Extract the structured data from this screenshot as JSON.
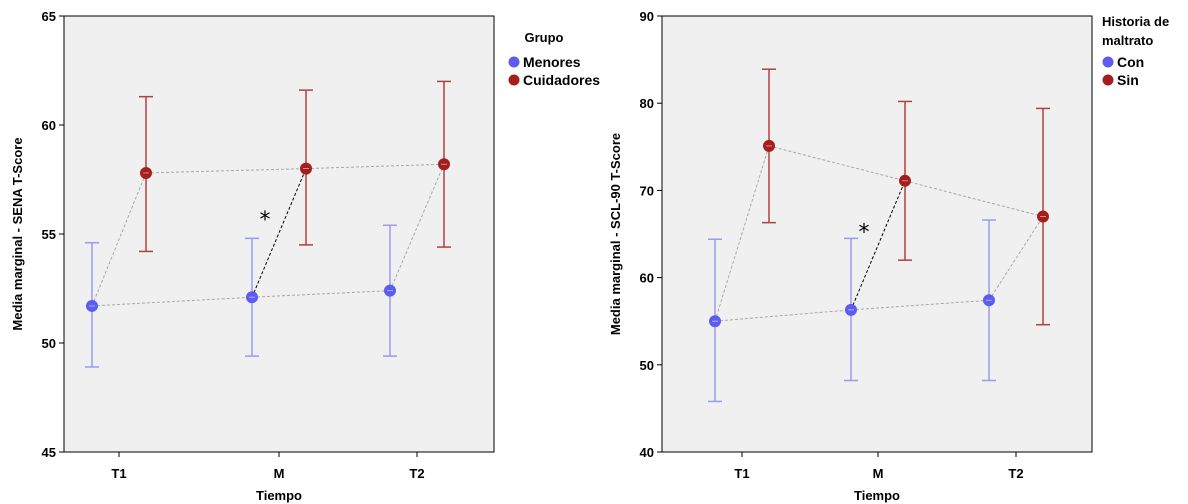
{
  "chart_data": [
    {
      "type": "scatter",
      "subtype": "error-bar-interaction",
      "xlabel": "Tiempo",
      "ylabel": "Media marginal - SENA T-Score",
      "categories": [
        "T1",
        "M",
        "T2"
      ],
      "ylim": [
        45,
        65
      ],
      "yticks": [
        "45",
        "50",
        "55",
        "60",
        "65"
      ],
      "legend": {
        "title": [
          "Grupo"
        ],
        "placement": "right"
      },
      "grid": false,
      "series": [
        {
          "name": "Menores",
          "color": "#5c5cf0",
          "bar_color": "#9a9af2",
          "mean": [
            51.7,
            52.1,
            52.4
          ],
          "lower": [
            48.9,
            49.4,
            49.4
          ],
          "upper": [
            54.6,
            54.8,
            55.4
          ]
        },
        {
          "name": "Cuidadores",
          "color": "#a51e1e",
          "bar_color": "#b24040",
          "mean": [
            57.8,
            58.0,
            58.2
          ],
          "lower": [
            54.2,
            54.5,
            54.4
          ],
          "upper": [
            61.3,
            61.6,
            62.0
          ]
        }
      ],
      "annotation": {
        "text": "*",
        "between": "M"
      }
    },
    {
      "type": "scatter",
      "subtype": "error-bar-interaction",
      "xlabel": "Tiempo",
      "ylabel": "Media marginal - SCL-90 T-Score",
      "categories": [
        "T1",
        "M",
        "T2"
      ],
      "ylim": [
        40,
        90
      ],
      "yticks": [
        "40",
        "50",
        "60",
        "70",
        "80",
        "90"
      ],
      "legend": {
        "title": [
          "Historia de",
          "maltrato"
        ],
        "placement": "right"
      },
      "grid": false,
      "series": [
        {
          "name": "Con",
          "color": "#5c5cf0",
          "bar_color": "#9a9af2",
          "mean": [
            55.0,
            56.3,
            57.4
          ],
          "lower": [
            45.8,
            48.2,
            48.2
          ],
          "upper": [
            64.4,
            64.5,
            66.6
          ]
        },
        {
          "name": "Sin",
          "color": "#a51e1e",
          "bar_color": "#b24040",
          "mean": [
            75.1,
            71.1,
            67.0
          ],
          "lower": [
            66.3,
            62.0,
            54.6
          ],
          "upper": [
            83.9,
            80.2,
            79.4
          ]
        }
      ],
      "annotation": {
        "text": "*",
        "between": "M"
      }
    }
  ]
}
